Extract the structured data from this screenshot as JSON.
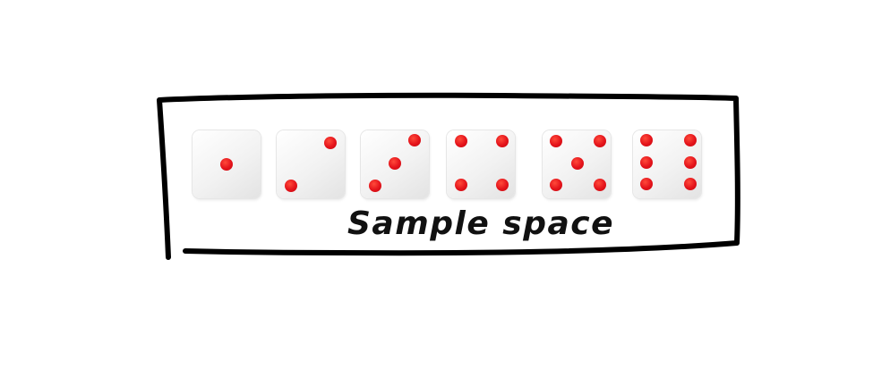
{
  "caption": "Sample space",
  "pip_color": "#e4131b",
  "frame_color": "#000000",
  "dice": [
    {
      "face": 1
    },
    {
      "face": 2
    },
    {
      "face": 3
    },
    {
      "face": 4
    },
    {
      "face": 5
    },
    {
      "face": 6
    }
  ]
}
